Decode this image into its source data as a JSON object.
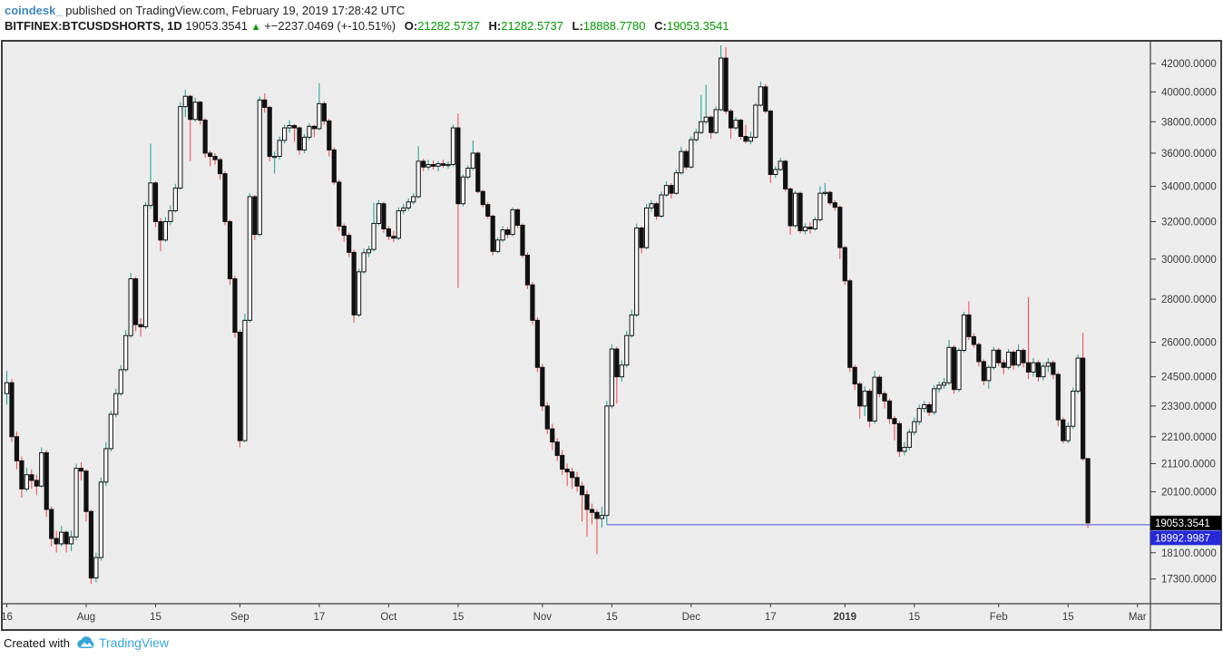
{
  "header": {
    "publisher": "coindesk_",
    "published_text": "published on TradingView.com, February 19, 2019 17:28:42 UTC",
    "symbol": "BITFINEX:BTCUSDSHORTS, 1D",
    "last_value": "19053.3541",
    "direction_icon": "▲",
    "change_text": "+−2237.0469 (+-10.51%)",
    "ohlc": [
      {
        "label": "O:",
        "value": "21282.5737"
      },
      {
        "label": "H:",
        "value": "21282.5737"
      },
      {
        "label": "L:",
        "value": "18888.7780"
      },
      {
        "label": "C:",
        "value": "19053.3541"
      }
    ]
  },
  "footer": {
    "created_with": "Created with",
    "brand": "TradingView",
    "logo_icon": "cloud-mountain-logo"
  },
  "colors": {
    "chart_bg": "#ececec",
    "frame": "#3c3c3c",
    "axis_text": "#3a3a3a",
    "wick_up": "#26a69a",
    "wick_down": "#ef5350",
    "body_up_fill": "#ffffff",
    "body_down_fill": "#111111",
    "body_stroke": "#111111",
    "ray_blue": "#6a6fdf",
    "price_label_black_bg": "#000000",
    "price_label_blue_bg": "#2629d8",
    "price_label_text": "#ffffff",
    "publisher_blue": "#3f86c6",
    "value_green": "#009b00",
    "brand_blue": "#37a5da"
  },
  "chart_data": {
    "type": "candlestick",
    "symbol": "BITFINEX:BTCUSDSHORTS",
    "interval": "1D",
    "start_date": "2018-07-16",
    "end_date": "2019-02-19",
    "price_scale": "log",
    "grid": "off",
    "ylim": [
      16580,
      43610
    ],
    "y_ticks": [
      "42000.0000",
      "40000.0000",
      "38000.0000",
      "36000.0000",
      "34000.0000",
      "32000.0000",
      "30000.0000",
      "28000.0000",
      "26000.0000",
      "24500.0000",
      "23300.0000",
      "22100.0000",
      "21100.0000",
      "20100.0000",
      "18100.0000",
      "17300.0000"
    ],
    "x_ticks": [
      {
        "label": "16",
        "day": 0
      },
      {
        "label": "Aug",
        "day": 16
      },
      {
        "label": "15",
        "day": 30
      },
      {
        "label": "Sep",
        "day": 47
      },
      {
        "label": "17",
        "day": 63
      },
      {
        "label": "Oct",
        "day": 77
      },
      {
        "label": "15",
        "day": 91
      },
      {
        "label": "Nov",
        "day": 108
      },
      {
        "label": "15",
        "day": 122
      },
      {
        "label": "Dec",
        "day": 138
      },
      {
        "label": "17",
        "day": 154
      },
      {
        "label": "2019",
        "day": 169,
        "bold": true
      },
      {
        "label": "15",
        "day": 183
      },
      {
        "label": "Feb",
        "day": 200
      },
      {
        "label": "15",
        "day": 214
      },
      {
        "label": "Mar",
        "day": 228
      }
    ],
    "last_price_label": {
      "value": "19053.3541",
      "price": 19053.3541
    },
    "ray_label": {
      "value": "18992.9987",
      "price": 18992.9987
    },
    "horizontal_ray": {
      "price": 18992.9987,
      "start_day": 121
    },
    "candles": [
      [
        23800,
        24750,
        23350,
        24250
      ],
      [
        24250,
        24400,
        21900,
        22100
      ],
      [
        22100,
        22300,
        20900,
        21200
      ],
      [
        21200,
        21350,
        19900,
        20200
      ],
      [
        20200,
        20950,
        20100,
        20700
      ],
      [
        20700,
        20900,
        20200,
        20500
      ],
      [
        20500,
        20700,
        20000,
        20300
      ],
      [
        20300,
        21700,
        20250,
        21500
      ],
      [
        21500,
        21600,
        19250,
        19500
      ],
      [
        19500,
        19600,
        18300,
        18550
      ],
      [
        18550,
        18800,
        18100,
        18380
      ],
      [
        18380,
        18950,
        18300,
        18750
      ],
      [
        18750,
        18800,
        18100,
        18380
      ],
      [
        18380,
        18800,
        18150,
        18600
      ],
      [
        18600,
        21100,
        18500,
        20930
      ],
      [
        20930,
        21150,
        20500,
        20830
      ],
      [
        20830,
        20900,
        19100,
        19430
      ],
      [
        19430,
        19500,
        17150,
        17330
      ],
      [
        17330,
        18100,
        17200,
        17950
      ],
      [
        17950,
        20600,
        17850,
        20440
      ],
      [
        20440,
        21900,
        20300,
        21650
      ],
      [
        21650,
        23100,
        21550,
        22970
      ],
      [
        22970,
        24000,
        22850,
        23800
      ],
      [
        23800,
        25000,
        23700,
        24800
      ],
      [
        24800,
        26550,
        24700,
        26300
      ],
      [
        26300,
        29300,
        26200,
        29000
      ],
      [
        29000,
        29100,
        26500,
        26800
      ],
      [
        26800,
        27100,
        26250,
        26700
      ],
      [
        26700,
        33100,
        26600,
        32900
      ],
      [
        32900,
        36600,
        32700,
        34200
      ],
      [
        34200,
        34300,
        31700,
        32000
      ],
      [
        32000,
        32200,
        30400,
        31000
      ],
      [
        31000,
        32250,
        30900,
        32000
      ],
      [
        32000,
        32900,
        31800,
        32600
      ],
      [
        32600,
        34150,
        32500,
        33900
      ],
      [
        33900,
        39300,
        33800,
        39000
      ],
      [
        39000,
        40150,
        38300,
        39700
      ],
      [
        39700,
        39800,
        35500,
        38150
      ],
      [
        38150,
        39600,
        38000,
        39300
      ],
      [
        39300,
        39400,
        37800,
        38100
      ],
      [
        38100,
        38250,
        35700,
        36000
      ],
      [
        36000,
        36150,
        35200,
        35800
      ],
      [
        35800,
        36000,
        35300,
        35600
      ],
      [
        35600,
        35700,
        34400,
        34750
      ],
      [
        34750,
        34900,
        31800,
        32000
      ],
      [
        32000,
        32100,
        28700,
        29000
      ],
      [
        29000,
        29150,
        26200,
        26450
      ],
      [
        26450,
        26550,
        21700,
        21950
      ],
      [
        21950,
        27300,
        21900,
        27000
      ],
      [
        27000,
        33600,
        26900,
        33400
      ],
      [
        33400,
        33500,
        31000,
        31300
      ],
      [
        31300,
        39700,
        31200,
        39450
      ],
      [
        39450,
        39900,
        38600,
        38950
      ],
      [
        38950,
        39050,
        35500,
        35800
      ],
      [
        35800,
        36100,
        34750,
        35800
      ],
      [
        35800,
        37050,
        35600,
        36800
      ],
      [
        36800,
        37800,
        36600,
        37600
      ],
      [
        37600,
        38100,
        37300,
        37750
      ],
      [
        37750,
        37850,
        36700,
        37600
      ],
      [
        37600,
        37700,
        35900,
        36200
      ],
      [
        36200,
        37200,
        36000,
        37000
      ],
      [
        37000,
        37900,
        36800,
        37700
      ],
      [
        37700,
        37800,
        37000,
        37550
      ],
      [
        37550,
        40600,
        37450,
        39200
      ],
      [
        39200,
        39350,
        37800,
        38050
      ],
      [
        38050,
        38200,
        35800,
        36200
      ],
      [
        36200,
        36350,
        34100,
        34250
      ],
      [
        34250,
        34400,
        31500,
        31750
      ],
      [
        31750,
        31900,
        30900,
        31250
      ],
      [
        31250,
        31400,
        30100,
        30350
      ],
      [
        30350,
        30500,
        26900,
        27250
      ],
      [
        27250,
        29500,
        27150,
        29350
      ],
      [
        29350,
        30550,
        29250,
        30330
      ],
      [
        30330,
        30700,
        30100,
        30500
      ],
      [
        30500,
        33050,
        30400,
        31900
      ],
      [
        31900,
        33200,
        31800,
        33000
      ],
      [
        33000,
        33100,
        31400,
        31600
      ],
      [
        31600,
        31750,
        31000,
        31200
      ],
      [
        31200,
        31500,
        30900,
        31100
      ],
      [
        31100,
        32800,
        31000,
        32600
      ],
      [
        32600,
        33000,
        32400,
        32760
      ],
      [
        32760,
        33300,
        32600,
        33100
      ],
      [
        33100,
        33600,
        32950,
        33400
      ],
      [
        33400,
        36430,
        33300,
        35500
      ],
      [
        35500,
        35650,
        34900,
        35150
      ],
      [
        35150,
        35600,
        34950,
        35300
      ],
      [
        35300,
        35550,
        35000,
        35200
      ],
      [
        35200,
        35500,
        34900,
        35350
      ],
      [
        35350,
        35600,
        35100,
        35250
      ],
      [
        35250,
        35500,
        35050,
        35300
      ],
      [
        35300,
        37800,
        35200,
        37600
      ],
      [
        37600,
        38550,
        28550,
        33000
      ],
      [
        33000,
        34700,
        32850,
        34550
      ],
      [
        34550,
        35250,
        34400,
        35080
      ],
      [
        35080,
        36800,
        34950,
        36000
      ],
      [
        36000,
        36100,
        33600,
        33700
      ],
      [
        33700,
        33800,
        32800,
        32950
      ],
      [
        32950,
        33100,
        32150,
        32300
      ],
      [
        32300,
        32400,
        30200,
        30400
      ],
      [
        30400,
        31150,
        30300,
        31000
      ],
      [
        31000,
        31750,
        30900,
        31550
      ],
      [
        31550,
        31700,
        31100,
        31300
      ],
      [
        31300,
        32800,
        31200,
        32660
      ],
      [
        32660,
        32750,
        31650,
        31800
      ],
      [
        31800,
        31900,
        30050,
        30200
      ],
      [
        30200,
        30350,
        28500,
        28700
      ],
      [
        28700,
        28850,
        26800,
        27000
      ],
      [
        27000,
        27150,
        24700,
        24900
      ],
      [
        24900,
        25050,
        23100,
        23300
      ],
      [
        23300,
        23450,
        22200,
        22400
      ],
      [
        22400,
        22600,
        21600,
        21900
      ],
      [
        21900,
        22050,
        21200,
        21400
      ],
      [
        21400,
        21600,
        20700,
        20900
      ],
      [
        20900,
        21100,
        20300,
        20800
      ],
      [
        20800,
        20950,
        20200,
        20600
      ],
      [
        20600,
        20800,
        20100,
        20300
      ],
      [
        20300,
        20450,
        19100,
        20000
      ],
      [
        20000,
        20150,
        18600,
        19500
      ],
      [
        19500,
        19700,
        19000,
        19400
      ],
      [
        19400,
        19500,
        18050,
        19200
      ],
      [
        19200,
        19600,
        18900,
        19300
      ],
      [
        19300,
        23500,
        18993,
        23300
      ],
      [
        23300,
        25900,
        23200,
        25700
      ],
      [
        25700,
        25800,
        23400,
        24500
      ],
      [
        24500,
        25200,
        24300,
        25000
      ],
      [
        25000,
        26500,
        24900,
        26300
      ],
      [
        26300,
        27500,
        26200,
        27250
      ],
      [
        27250,
        31900,
        27150,
        31650
      ],
      [
        31650,
        31750,
        30300,
        30600
      ],
      [
        30600,
        33000,
        30500,
        32760
      ],
      [
        32760,
        33200,
        32550,
        33000
      ],
      [
        33000,
        33100,
        32100,
        32300
      ],
      [
        32300,
        33700,
        32200,
        33500
      ],
      [
        33500,
        34300,
        33400,
        34050
      ],
      [
        34050,
        34200,
        33300,
        33600
      ],
      [
        33600,
        35000,
        33500,
        34800
      ],
      [
        34800,
        36400,
        34700,
        36100
      ],
      [
        36100,
        36250,
        35000,
        35150
      ],
      [
        35150,
        37050,
        35050,
        36840
      ],
      [
        36840,
        37550,
        36700,
        37300
      ],
      [
        37300,
        39800,
        37200,
        38000
      ],
      [
        38000,
        40500,
        37850,
        38300
      ],
      [
        38300,
        38400,
        36900,
        37300
      ],
      [
        37300,
        39000,
        37200,
        38800
      ],
      [
        38800,
        43350,
        38700,
        42400
      ],
      [
        42400,
        43200,
        38500,
        38700
      ],
      [
        38700,
        38850,
        36900,
        37600
      ],
      [
        37600,
        38300,
        37450,
        38100
      ],
      [
        38100,
        38200,
        36850,
        37050
      ],
      [
        37050,
        37800,
        36600,
        36750
      ],
      [
        36750,
        37350,
        36550,
        37000
      ],
      [
        37000,
        39250,
        36900,
        39100
      ],
      [
        39100,
        40700,
        39000,
        40350
      ],
      [
        40350,
        40550,
        38550,
        38700
      ],
      [
        38700,
        38800,
        34200,
        34700
      ],
      [
        34700,
        35200,
        34500,
        35000
      ],
      [
        35000,
        35700,
        34900,
        35500
      ],
      [
        35500,
        35600,
        33700,
        33850
      ],
      [
        33850,
        33950,
        31300,
        31770
      ],
      [
        31770,
        33750,
        31650,
        33600
      ],
      [
        33600,
        33700,
        31350,
        31500
      ],
      [
        31500,
        31900,
        31300,
        31700
      ],
      [
        31700,
        31950,
        31350,
        31600
      ],
      [
        31600,
        32250,
        31500,
        32100
      ],
      [
        32100,
        34000,
        32000,
        33600
      ],
      [
        33600,
        34200,
        33450,
        33650
      ],
      [
        33650,
        33750,
        32900,
        33050
      ],
      [
        33050,
        33200,
        32600,
        32800
      ],
      [
        32800,
        32900,
        30000,
        30600
      ],
      [
        30600,
        30700,
        28700,
        28900
      ],
      [
        28900,
        29000,
        24700,
        24900
      ],
      [
        24900,
        25000,
        23950,
        24200
      ],
      [
        24200,
        24300,
        22800,
        23300
      ],
      [
        23300,
        24100,
        22900,
        23900
      ],
      [
        23900,
        24000,
        22450,
        22700
      ],
      [
        22700,
        24750,
        22600,
        24480
      ],
      [
        24480,
        24580,
        23650,
        23800
      ],
      [
        23800,
        23900,
        23200,
        23500
      ],
      [
        23500,
        23600,
        22600,
        22800
      ],
      [
        22800,
        22900,
        21950,
        22600
      ],
      [
        22600,
        22700,
        21350,
        21550
      ],
      [
        21550,
        21900,
        21400,
        21700
      ],
      [
        21700,
        22400,
        21600,
        22270
      ],
      [
        22270,
        22850,
        22150,
        22680
      ],
      [
        22680,
        23350,
        22550,
        23200
      ],
      [
        23200,
        23500,
        23050,
        23350
      ],
      [
        23350,
        23450,
        22900,
        23050
      ],
      [
        23050,
        24150,
        22950,
        24000
      ],
      [
        24000,
        24300,
        23850,
        24150
      ],
      [
        24150,
        24450,
        24000,
        24250
      ],
      [
        24250,
        26100,
        24150,
        25770
      ],
      [
        25770,
        25870,
        23800,
        23970
      ],
      [
        23970,
        25750,
        23870,
        25640
      ],
      [
        25640,
        27400,
        25550,
        27250
      ],
      [
        27250,
        27900,
        26100,
        26250
      ],
      [
        26250,
        26400,
        25750,
        25900
      ],
      [
        25900,
        26000,
        24950,
        25150
      ],
      [
        25150,
        25250,
        24150,
        24340
      ],
      [
        24340,
        25000,
        24000,
        24900
      ],
      [
        24900,
        25800,
        24800,
        25650
      ],
      [
        25650,
        25750,
        24950,
        25100
      ],
      [
        25100,
        25250,
        24600,
        24900
      ],
      [
        24900,
        25700,
        24800,
        25560
      ],
      [
        25560,
        25660,
        24800,
        25000
      ],
      [
        25000,
        25900,
        24900,
        25640
      ],
      [
        25640,
        25740,
        24900,
        25100
      ],
      [
        25100,
        28100,
        24400,
        24700
      ],
      [
        24700,
        25300,
        24500,
        25100
      ],
      [
        25100,
        25200,
        24300,
        24500
      ],
      [
        24500,
        25100,
        24350,
        24950
      ],
      [
        24950,
        25300,
        24700,
        25100
      ],
      [
        25100,
        25200,
        24400,
        24600
      ],
      [
        24600,
        24700,
        22500,
        22750
      ],
      [
        22750,
        22850,
        21850,
        21950
      ],
      [
        21950,
        22650,
        21850,
        22500
      ],
      [
        22500,
        24050,
        22400,
        23900
      ],
      [
        23900,
        25450,
        23800,
        25300
      ],
      [
        25300,
        26430,
        21200,
        21282
      ],
      [
        21282.57,
        21282.57,
        18888.78,
        19053.35
      ]
    ]
  }
}
